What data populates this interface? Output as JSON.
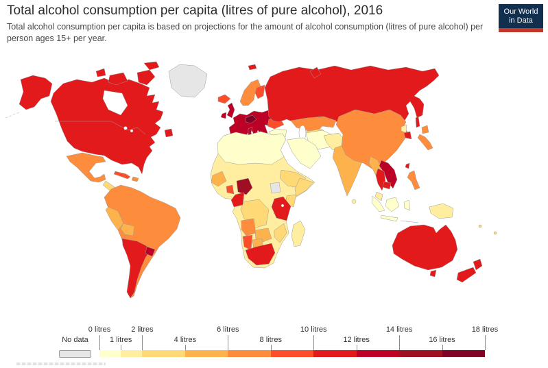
{
  "logo": {
    "line1": "Our World",
    "line2": "in Data",
    "bg_color": "#12304e",
    "stripe_color": "#c0392b"
  },
  "chart_data": {
    "type": "heatmap",
    "subtype": "choropleth_world_map",
    "title": "Total alcohol consumption per capita (litres of pure alcohol), 2016",
    "subtitle": "Total alcohol consumption per capita is based on projections for the amount of alcohol consumption (litres of pure alcohol) per person ages 15+ per year.",
    "year": 2016,
    "unit": "litres of pure alcohol per person (ages 15+) per year",
    "legend": {
      "no_data": {
        "label": "No data",
        "color": "#ececec"
      },
      "scale": {
        "min": 0,
        "max": 18
      },
      "bins": [
        {
          "from": 0,
          "to": 1,
          "color": "#ffffcc"
        },
        {
          "from": 1,
          "to": 2,
          "color": "#ffeda0"
        },
        {
          "from": 2,
          "to": 4,
          "color": "#fed976"
        },
        {
          "from": 4,
          "to": 6,
          "color": "#feb24c"
        },
        {
          "from": 6,
          "to": 8,
          "color": "#fd8d3c"
        },
        {
          "from": 8,
          "to": 10,
          "color": "#fc4e2a"
        },
        {
          "from": 10,
          "to": 12,
          "color": "#e31a1c"
        },
        {
          "from": 12,
          "to": 14,
          "color": "#bd0026"
        },
        {
          "from": 14,
          "to": 16,
          "color": "#9f0e21"
        },
        {
          "from": 16,
          "to": 18,
          "color": "#800026"
        }
      ],
      "ticks": [
        {
          "value": 0,
          "label": "0 litres",
          "row": "top"
        },
        {
          "value": 1,
          "label": "1 litres",
          "row": "bottom"
        },
        {
          "value": 2,
          "label": "2 litres",
          "row": "top"
        },
        {
          "value": 4,
          "label": "4 litres",
          "row": "bottom"
        },
        {
          "value": 6,
          "label": "6 litres",
          "row": "top"
        },
        {
          "value": 8,
          "label": "8 litres",
          "row": "bottom"
        },
        {
          "value": 10,
          "label": "10 litres",
          "row": "top"
        },
        {
          "value": 12,
          "label": "12 litres",
          "row": "bottom"
        },
        {
          "value": 14,
          "label": "14 litres",
          "row": "top"
        },
        {
          "value": 16,
          "label": "16 litres",
          "row": "bottom"
        },
        {
          "value": 18,
          "label": "18 litres",
          "row": "top"
        }
      ]
    },
    "regions": [
      {
        "name": "Greenland",
        "value_range": "No data"
      },
      {
        "name": "Canada",
        "value_range": "10-12 litres"
      },
      {
        "name": "United States",
        "value_range": "10-12 litres"
      },
      {
        "name": "Mexico",
        "value_range": "6-8 litres"
      },
      {
        "name": "Central America",
        "value_range": "2-6 litres"
      },
      {
        "name": "Cuba",
        "value_range": "8-10 litres"
      },
      {
        "name": "Colombia & Venezuela",
        "value_range": "6-8 litres"
      },
      {
        "name": "Brazil",
        "value_range": "6-8 litres"
      },
      {
        "name": "Peru",
        "value_range": "4-6 litres"
      },
      {
        "name": "Bolivia",
        "value_range": "4-6 litres"
      },
      {
        "name": "Argentina & Chile",
        "value_range": "10-12 litres"
      },
      {
        "name": "Uruguay",
        "value_range": "12-14 litres"
      },
      {
        "name": "Iceland",
        "value_range": "8-10 litres"
      },
      {
        "name": "United Kingdom & Ireland",
        "value_range": "12-14 litres"
      },
      {
        "name": "Western & Central Europe",
        "value_range": "12-14 litres"
      },
      {
        "name": "Czechia & Austria",
        "value_range": "16-18 litres"
      },
      {
        "name": "Norway & Sweden",
        "value_range": "6-8 litres"
      },
      {
        "name": "Finland",
        "value_range": "8-10 litres"
      },
      {
        "name": "Ukraine",
        "value_range": "8-10 litres"
      },
      {
        "name": "Russia",
        "value_range": "10-12 litres"
      },
      {
        "name": "Kazakhstan",
        "value_range": "6-8 litres"
      },
      {
        "name": "Central Asia",
        "value_range": "2-4 litres"
      },
      {
        "name": "Turkey",
        "value_range": "0-1 litres"
      },
      {
        "name": "Middle East & Arabian Peninsula",
        "value_range": "0-1 litres"
      },
      {
        "name": "Iran",
        "value_range": "0-1 litres"
      },
      {
        "name": "Afghanistan & Pakistan",
        "value_range": "1-2 litres"
      },
      {
        "name": "India",
        "value_range": "4-6 litres"
      },
      {
        "name": "Sri Lanka",
        "value_range": "1-2 litres"
      },
      {
        "name": "China & Mongolia",
        "value_range": "6-8 litres"
      },
      {
        "name": "North Korea",
        "value_range": "1-2 litres"
      },
      {
        "name": "South Korea",
        "value_range": "10-12 litres"
      },
      {
        "name": "Japan",
        "value_range": "6-8 litres"
      },
      {
        "name": "Myanmar",
        "value_range": "4-6 litres"
      },
      {
        "name": "Thailand",
        "value_range": "10-12 litres"
      },
      {
        "name": "Laos & Vietnam",
        "value_range": "12-14 litres"
      },
      {
        "name": "Cambodia",
        "value_range": "10-12 litres"
      },
      {
        "name": "Malaysia",
        "value_range": "1-2 litres"
      },
      {
        "name": "Indonesia",
        "value_range": "0-1 litres"
      },
      {
        "name": "Philippines",
        "value_range": "6-8 litres"
      },
      {
        "name": "Papua New Guinea",
        "value_range": "1-2 litres"
      },
      {
        "name": "Australia",
        "value_range": "10-12 litres"
      },
      {
        "name": "New Zealand",
        "value_range": "10-12 litres"
      },
      {
        "name": "North Africa & Sahara",
        "value_range": "0-1 litres"
      },
      {
        "name": "Sahel",
        "value_range": "1-2 litres"
      },
      {
        "name": "West Africa (Guinea region)",
        "value_range": "4-6 litres"
      },
      {
        "name": "Ghana",
        "value_range": "8-10 litres"
      },
      {
        "name": "Nigeria",
        "value_range": "14-16 litres"
      },
      {
        "name": "Cameroon & Gabon",
        "value_range": "10-12 litres"
      },
      {
        "name": "DR Congo",
        "value_range": "2-4 litres"
      },
      {
        "name": "Ethiopia",
        "value_range": "2-4 litres"
      },
      {
        "name": "Somalia",
        "value_range": "2-4 litres"
      },
      {
        "name": "South Sudan",
        "value_range": "No data"
      },
      {
        "name": "Kenya",
        "value_range": "2-4 litres"
      },
      {
        "name": "Uganda & Tanzania",
        "value_range": "10-12 litres"
      },
      {
        "name": "Angola",
        "value_range": "6-8 litres"
      },
      {
        "name": "Zambia & Zimbabwe",
        "value_range": "4-6 litres"
      },
      {
        "name": "Namibia",
        "value_range": "8-10 litres"
      },
      {
        "name": "Botswana",
        "value_range": "4-6 litres"
      },
      {
        "name": "Mozambique",
        "value_range": "2-4 litres"
      },
      {
        "name": "South Africa",
        "value_range": "10-12 litres"
      },
      {
        "name": "Madagascar",
        "value_range": "1-2 litres"
      }
    ]
  },
  "palette": {
    "nodata": "#e6e6e6",
    "c0": "#ffffcc",
    "c1": "#ffeda0",
    "c2": "#fed976",
    "c4": "#feb24c",
    "c6": "#fd8d3c",
    "c8": "#fc4e2a",
    "c10": "#e31a1c",
    "c12": "#bd0026",
    "c14": "#9f0e21",
    "c16": "#800026",
    "ocean": "#ffffff",
    "border": "#9b9b9b"
  }
}
